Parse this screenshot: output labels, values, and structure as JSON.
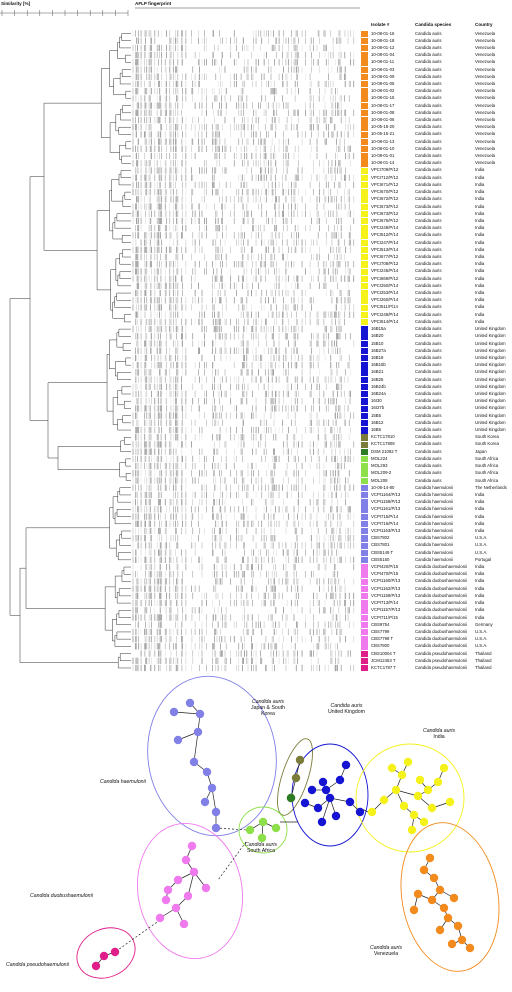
{
  "header": {
    "similarity_label": "Similarity [%]",
    "fingerprint_label": "AFLP fingerprint",
    "col_isolate": "Isolate #",
    "col_species": "Candida species",
    "col_country": "Country"
  },
  "colors": {
    "venezuela": "#f28a1e",
    "india": "#f4f21a",
    "uk": "#1414d2",
    "south_korea": "#7b7b3a",
    "japan": "#2e7d25",
    "south_africa": "#8ee04a",
    "haemulonii": "#8080e6",
    "duobushaemulonii": "#ee7aee",
    "pseudohaemulonii": "#e01e8a"
  },
  "isolates": [
    {
      "id": "10-08-01-16",
      "species": "Candida auris",
      "country": "Venezuela",
      "group": "venezuela"
    },
    {
      "id": "10-08-01-18",
      "species": "Candida auris",
      "country": "Venezuela",
      "group": "venezuela"
    },
    {
      "id": "10-08-01-12",
      "species": "Candida auris",
      "country": "Venezuela",
      "group": "venezuela"
    },
    {
      "id": "10-08-01-04",
      "species": "Candida auris",
      "country": "Venezuela",
      "group": "venezuela"
    },
    {
      "id": "10-08-01-11",
      "species": "Candida auris",
      "country": "Venezuela",
      "group": "venezuela"
    },
    {
      "id": "10-08-01-03",
      "species": "Candida auris",
      "country": "Venezuela",
      "group": "venezuela"
    },
    {
      "id": "10-08-01-09",
      "species": "Candida auris",
      "country": "Venezuela",
      "group": "venezuela"
    },
    {
      "id": "10-08-01-05",
      "species": "Candida auris",
      "country": "Venezuela",
      "group": "venezuela"
    },
    {
      "id": "10-08-01-02",
      "species": "Candida auris",
      "country": "Venezuela",
      "group": "venezuela"
    },
    {
      "id": "10-08-01-15",
      "species": "Candida auris",
      "country": "Venezuela",
      "group": "venezuela"
    },
    {
      "id": "10-08-01-17",
      "species": "Candida auris",
      "country": "Venezuela",
      "group": "venezuela"
    },
    {
      "id": "10-08-01-08",
      "species": "Candida auris",
      "country": "Venezuela",
      "group": "venezuela"
    },
    {
      "id": "10-08-01-06",
      "species": "Candida auris",
      "country": "Venezuela",
      "group": "venezuela"
    },
    {
      "id": "10-05-15-20",
      "species": "Candida auris",
      "country": "Venezuela",
      "group": "venezuela"
    },
    {
      "id": "10-05-15-21",
      "species": "Candida auris",
      "country": "Venezuela",
      "group": "venezuela"
    },
    {
      "id": "10-08-01-13",
      "species": "Candida auris",
      "country": "Venezuela",
      "group": "venezuela"
    },
    {
      "id": "10-08-01-10",
      "species": "Candida auris",
      "country": "Venezuela",
      "group": "venezuela"
    },
    {
      "id": "10-08-01-01",
      "species": "Candida auris",
      "country": "Venezuela",
      "group": "venezuela"
    },
    {
      "id": "10-08-01-14",
      "species": "Candida auris",
      "country": "Venezuela",
      "group": "venezuela"
    },
    {
      "id": "VPCI709/P/12",
      "species": "Candida auris",
      "country": "India",
      "group": "india"
    },
    {
      "id": "VPCI712/P/12",
      "species": "Candida auris",
      "country": "India",
      "group": "india"
    },
    {
      "id": "VPCI671/P/12",
      "species": "Candida auris",
      "country": "India",
      "group": "india"
    },
    {
      "id": "VPCI670/P/12",
      "species": "Candida auris",
      "country": "India",
      "group": "india"
    },
    {
      "id": "VPCI672/P/12",
      "species": "Candida auris",
      "country": "India",
      "group": "india"
    },
    {
      "id": "VPCI673/P/12",
      "species": "Candida auris",
      "country": "India",
      "group": "india"
    },
    {
      "id": "VPCI673/P/12",
      "species": "Candida auris",
      "country": "India",
      "group": "india"
    },
    {
      "id": "VPCI676/P/12",
      "species": "Candida auris",
      "country": "India",
      "group": "india"
    },
    {
      "id": "VPCI248/P/14",
      "species": "Candida auris",
      "country": "India",
      "group": "india"
    },
    {
      "id": "VPCI512/P/14",
      "species": "Candida auris",
      "country": "India",
      "group": "india"
    },
    {
      "id": "VPCI247/P/14",
      "species": "Candida auris",
      "country": "India",
      "group": "india"
    },
    {
      "id": "VPCI513/P/14",
      "species": "Candida auris",
      "country": "India",
      "group": "india"
    },
    {
      "id": "VPCI677/P/12",
      "species": "Candida auris",
      "country": "India",
      "group": "india"
    },
    {
      "id": "VPCI708/P/12",
      "species": "Candida auris",
      "country": "India",
      "group": "india"
    },
    {
      "id": "VPCI245/P/14",
      "species": "Candida auris",
      "country": "India",
      "group": "india"
    },
    {
      "id": "VPCI669/P/12",
      "species": "Candida auris",
      "country": "India",
      "group": "india"
    },
    {
      "id": "VPCI250/P/14",
      "species": "Candida auris",
      "country": "India",
      "group": "india"
    },
    {
      "id": "VPCI253/P/14",
      "species": "Candida auris",
      "country": "India",
      "group": "india"
    },
    {
      "id": "VPCI260/P/14",
      "species": "Candida auris",
      "country": "India",
      "group": "india"
    },
    {
      "id": "VPCI511/P/14",
      "species": "Candida auris",
      "country": "India",
      "group": "india"
    },
    {
      "id": "VPCI249/P/14",
      "species": "Candida auris",
      "country": "India",
      "group": "india"
    },
    {
      "id": "VPCI514/P/14",
      "species": "Candida auris",
      "country": "India",
      "group": "india"
    },
    {
      "id": "16B15a",
      "species": "Candida auris",
      "country": "United Kingdom",
      "group": "uk"
    },
    {
      "id": "16B20",
      "species": "Candida auris",
      "country": "United Kingdom",
      "group": "uk"
    },
    {
      "id": "15B10",
      "species": "Candida auris",
      "country": "United Kingdom",
      "group": "uk"
    },
    {
      "id": "16B27a",
      "species": "Candida auris",
      "country": "United Kingdom",
      "group": "uk"
    },
    {
      "id": "16B18",
      "species": "Candida auris",
      "country": "United Kingdom",
      "group": "uk"
    },
    {
      "id": "16B15b",
      "species": "Candida auris",
      "country": "United Kingdom",
      "group": "uk"
    },
    {
      "id": "16B21",
      "species": "Candida auris",
      "country": "United Kingdom",
      "group": "uk"
    },
    {
      "id": "16B25",
      "species": "Candida auris",
      "country": "United Kingdom",
      "group": "uk"
    },
    {
      "id": "16B24b",
      "species": "Candida auris",
      "country": "United Kingdom",
      "group": "uk"
    },
    {
      "id": "16B24a",
      "species": "Candida auris",
      "country": "United Kingdom",
      "group": "uk"
    },
    {
      "id": "16I30",
      "species": "Candida auris",
      "country": "United Kingdom",
      "group": "uk"
    },
    {
      "id": "16I27b",
      "species": "Candida auris",
      "country": "United Kingdom",
      "group": "uk"
    },
    {
      "id": "15B5",
      "species": "Candida auris",
      "country": "United Kingdom",
      "group": "uk"
    },
    {
      "id": "16B12",
      "species": "Candida auris",
      "country": "United Kingdom",
      "group": "uk"
    },
    {
      "id": "16B5",
      "species": "Candida auris",
      "country": "United Kingdom",
      "group": "uk"
    },
    {
      "id": "KCTC17810",
      "species": "Candida auris",
      "country": "South Korea",
      "group": "south_korea"
    },
    {
      "id": "KCTC17809",
      "species": "Candida auris",
      "country": "South Korea",
      "group": "south_korea"
    },
    {
      "id": "DSM 21092 T",
      "species": "Candida auris",
      "country": "Japan",
      "group": "japan"
    },
    {
      "id": "MOL224",
      "species": "Candida auris",
      "country": "South Africa",
      "group": "south_africa"
    },
    {
      "id": "MOL293",
      "species": "Candida auris",
      "country": "South Africa",
      "group": "south_africa"
    },
    {
      "id": "MOL209-2",
      "species": "Candida auris",
      "country": "South Africa",
      "group": "south_africa"
    },
    {
      "id": "MOL208",
      "species": "Candida auris",
      "country": "South Africa",
      "group": "south_africa"
    },
    {
      "id": "10-06-14-80",
      "species": "Candida haemulonii",
      "country": "The Netherlands",
      "group": "haemulonii"
    },
    {
      "id": "VCPI1164/P/13",
      "species": "Candida haemulonii",
      "country": "India",
      "group": "haemulonii"
    },
    {
      "id": "VCPI1158/P/13",
      "species": "Candida haemulonii",
      "country": "India",
      "group": "haemulonii"
    },
    {
      "id": "VCPI1161/P/13",
      "species": "Candida haemulonii",
      "country": "India",
      "group": "haemulonii"
    },
    {
      "id": "VCPI715/P/14",
      "species": "Candida haemulonii",
      "country": "India",
      "group": "haemulonii"
    },
    {
      "id": "VCPI716/P/14",
      "species": "Candida haemulonii",
      "country": "India",
      "group": "haemulonii"
    },
    {
      "id": "VCPI1163/P/13",
      "species": "Candida haemulonii",
      "country": "India",
      "group": "haemulonii"
    },
    {
      "id": "CBS7802",
      "species": "Candida haemulonii",
      "country": "U.S.A.",
      "group": "haemulonii"
    },
    {
      "id": "CBS7801",
      "species": "Candida haemulonii",
      "country": "U.S.A.",
      "group": "haemulonii"
    },
    {
      "id": "CBS5149 T",
      "species": "Candida haemulonii",
      "country": "U.S.A.",
      "group": "haemulonii"
    },
    {
      "id": "CBS5150",
      "species": "Candida haemulonii",
      "country": "Portugal",
      "group": "haemulonii"
    },
    {
      "id": "VCPI420/P/15",
      "species": "Candida duobushaemulonii",
      "country": "India",
      "group": "duobushaemulonii"
    },
    {
      "id": "VCPI470/P/15",
      "species": "Candida duobushaemulonii",
      "country": "India",
      "group": "duobushaemulonii"
    },
    {
      "id": "VCPI1160/P/13",
      "species": "Candida duobushaemulonii",
      "country": "India",
      "group": "duobushaemulonii"
    },
    {
      "id": "VCPI1162/P/13",
      "species": "Candida duobushaemulonii",
      "country": "India",
      "group": "duobushaemulonii"
    },
    {
      "id": "VCPI1159/P/13",
      "species": "Candida duobushaemulonii",
      "country": "India",
      "group": "duobushaemulonii"
    },
    {
      "id": "VCPI713/P/14",
      "species": "Candida duobushaemulonii",
      "country": "India",
      "group": "duobushaemulonii"
    },
    {
      "id": "VCPI1157/P/13",
      "species": "Candida duobushaemulonii",
      "country": "India",
      "group": "duobushaemulonii"
    },
    {
      "id": "VCPI711/P/15",
      "species": "Candida duobushaemulonii",
      "country": "India",
      "group": "duobushaemulonii"
    },
    {
      "id": "CBS9754",
      "species": "Candida duobushaemulonii",
      "country": "Germany",
      "group": "duobushaemulonii"
    },
    {
      "id": "CBS7799",
      "species": "Candida duobushaemulonii",
      "country": "U.S.A.",
      "group": "duobushaemulonii"
    },
    {
      "id": "CBS7798 T",
      "species": "Candida duobushaemulonii",
      "country": "U.S.A.",
      "group": "duobushaemulonii"
    },
    {
      "id": "CBS7800",
      "species": "Candida duobushaemulonii",
      "country": "U.S.A.",
      "group": "duobushaemulonii"
    },
    {
      "id": "CBS10004 T",
      "species": "Candida pseudohaemulonii",
      "country": "Thailand",
      "group": "pseudohaemulonii"
    },
    {
      "id": "JCM12453 T",
      "species": "Candida pseudohaemulonii",
      "country": "Thailand",
      "group": "pseudohaemulonii"
    },
    {
      "id": "KCTC1787 T",
      "species": "Candida pseudohaemulonii",
      "country": "Thailand",
      "group": "pseudohaemulonii"
    }
  ],
  "network_labels": [
    {
      "key": "haemulonii",
      "species": "Candida haemulonii",
      "region": ""
    },
    {
      "key": "japan_korea",
      "species": "Candida auris",
      "region": "Japan & South Korea"
    },
    {
      "key": "uk",
      "species": "Candida auris",
      "region": "United Kingdom"
    },
    {
      "key": "india",
      "species": "Candida auris",
      "region": "India"
    },
    {
      "key": "south_africa",
      "species": "Candida auris",
      "region": "South Africa"
    },
    {
      "key": "duobushaemulonii",
      "species": "Candida duobushaemulonii",
      "region": ""
    },
    {
      "key": "venezuela",
      "species": "Candida auris",
      "region": "Venezuela"
    },
    {
      "key": "pseudohaemulonii",
      "species": "Candida pseudohaemulonii",
      "region": ""
    }
  ]
}
